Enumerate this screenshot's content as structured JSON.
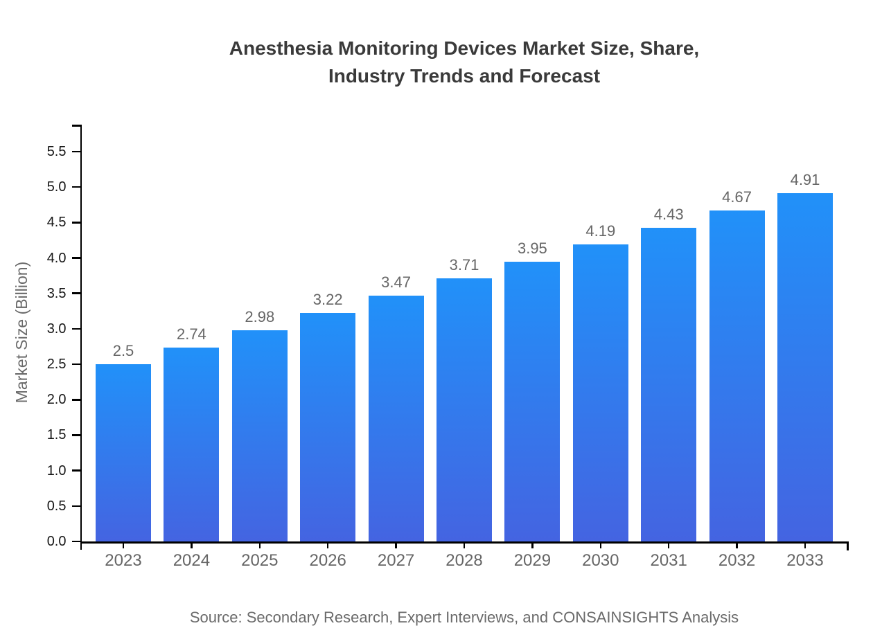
{
  "title": {
    "line1": "Anesthesia Monitoring Devices Market Size, Share,",
    "line2": "Industry Trends and Forecast"
  },
  "source": "Source: Secondary Research, Expert Interviews, and CONSAINSIGHTS Analysis",
  "chart_data": {
    "type": "bar",
    "title": "Anesthesia Monitoring Devices Market Size, Share, Industry Trends and Forecast",
    "categories": [
      "2023",
      "2024",
      "2025",
      "2026",
      "2027",
      "2028",
      "2029",
      "2030",
      "2031",
      "2032",
      "2033"
    ],
    "values": [
      2.5,
      2.74,
      2.98,
      3.22,
      3.47,
      3.71,
      3.95,
      4.19,
      4.43,
      4.67,
      4.91
    ],
    "value_labels": [
      "2.5",
      "2.74",
      "2.98",
      "3.22",
      "3.47",
      "3.71",
      "3.95",
      "4.19",
      "4.43",
      "4.67",
      "4.91"
    ],
    "xlabel": "",
    "ylabel": "Market Size (Billion)",
    "ylim": [
      0,
      5.75
    ],
    "yticks": [
      0,
      0.5,
      1,
      1.5,
      2,
      2.5,
      3,
      3.5,
      4,
      4.5,
      5,
      5.5
    ],
    "ytick_labels": [
      "0.0",
      "0.5",
      "1.0",
      "1.5",
      "2.0",
      "2.5",
      "3.0",
      "3.5",
      "4.0",
      "4.5",
      "5.0",
      "5.5"
    ],
    "grid": false,
    "legend": "none",
    "colors": {
      "bar_gradient_top": "#2191f9",
      "bar_gradient_bottom": "#4464e1",
      "axis": "#000000",
      "category_label": "#666666",
      "value_label": "#666666",
      "ytick_label": "#161616",
      "title": "#3a3a3a",
      "source": "#6a6a6a"
    }
  }
}
